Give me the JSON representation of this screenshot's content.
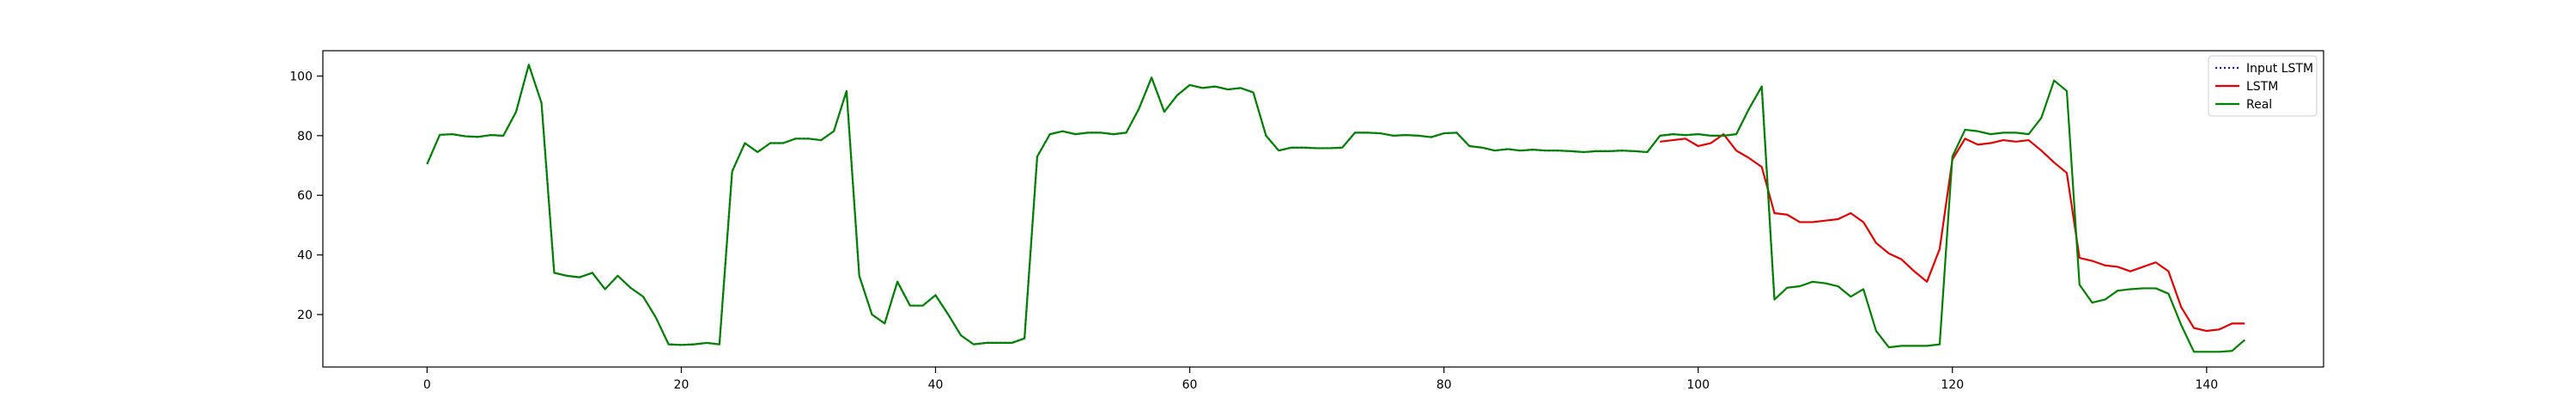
{
  "chart_data": {
    "type": "line",
    "title": "",
    "xlabel": "",
    "ylabel": "",
    "xlim": [
      -8.2,
      149.2
    ],
    "ylim": [
      2.4,
      108.5
    ],
    "xticks": [
      0,
      20,
      40,
      60,
      80,
      100,
      120,
      140
    ],
    "yticks": [
      20,
      40,
      60,
      80,
      100
    ],
    "grid": false,
    "legend": {
      "location": "upper right"
    },
    "series": [
      {
        "name": "Input LSTM",
        "color": "#1f1f8f",
        "linestyle": "dotted",
        "x_start": 0,
        "values": [
          70.5,
          80.3,
          80.5,
          79.8,
          79.6,
          80.2,
          80.0,
          88.0,
          103.8,
          91.0,
          34.0,
          33.0,
          32.5,
          34.0,
          28.5,
          33.0,
          29.0,
          26.0,
          19.0,
          10.0,
          9.8,
          10.0,
          10.5,
          10.0,
          68.0,
          77.5,
          74.5,
          77.5,
          77.5,
          79.0,
          79.0,
          78.5,
          81.5,
          95.0,
          33.0,
          20.0,
          17.0,
          31.0,
          23.0,
          23.0,
          26.5,
          20.0,
          13.0,
          10.0,
          10.5,
          10.5,
          10.5,
          12.0,
          73.0,
          80.5,
          81.5,
          80.5,
          81.0,
          81.0,
          80.5,
          81.0,
          89.0,
          99.5,
          88.0,
          93.5,
          97.0,
          96.0,
          96.5,
          95.5,
          96.0,
          94.5,
          80.0,
          75.0,
          76.0,
          76.0,
          75.8,
          75.8,
          76.0,
          81.0,
          81.0,
          80.8,
          80.0,
          80.2,
          80.0,
          79.5,
          80.8,
          81.0,
          76.5,
          76.0,
          75.0,
          75.5,
          75.0,
          75.3,
          75.0,
          75.0,
          74.8,
          74.5,
          74.8,
          74.8,
          75.0,
          74.8,
          74.5,
          80.0,
          80.5,
          80.2,
          80.5,
          80.0,
          80.0,
          80.5,
          89.0,
          96.5,
          25.0
        ]
      },
      {
        "name": "LSTM",
        "color": "#e00000",
        "linestyle": "solid",
        "x_start": 97,
        "values": [
          78.0,
          78.5,
          79.0,
          76.5,
          77.5,
          80.5,
          75.0,
          72.5,
          69.5,
          54.0,
          53.5,
          51.0,
          51.0,
          51.5,
          52.0,
          54.0,
          51.0,
          44.0,
          40.5,
          38.5,
          34.5,
          31.0,
          42.0,
          72.0,
          79.0,
          77.0,
          77.5,
          78.5,
          78.0,
          78.5,
          75.0,
          71.0,
          67.5,
          39.0,
          38.0,
          36.5,
          36.0,
          34.5,
          36.0,
          37.5,
          34.5,
          22.5,
          15.5,
          14.5,
          15.0,
          17.0,
          17.0
        ]
      },
      {
        "name": "Real",
        "color": "#008000",
        "linestyle": "solid",
        "x_start": 0,
        "values": [
          70.5,
          80.3,
          80.5,
          79.8,
          79.6,
          80.2,
          80.0,
          88.0,
          103.8,
          91.0,
          34.0,
          33.0,
          32.5,
          34.0,
          28.5,
          33.0,
          29.0,
          26.0,
          19.0,
          10.0,
          9.8,
          10.0,
          10.5,
          10.0,
          68.0,
          77.5,
          74.5,
          77.5,
          77.5,
          79.0,
          79.0,
          78.5,
          81.5,
          95.0,
          33.0,
          20.0,
          17.0,
          31.0,
          23.0,
          23.0,
          26.5,
          20.0,
          13.0,
          10.0,
          10.5,
          10.5,
          10.5,
          12.0,
          73.0,
          80.5,
          81.5,
          80.5,
          81.0,
          81.0,
          80.5,
          81.0,
          89.0,
          99.5,
          88.0,
          93.5,
          97.0,
          96.0,
          96.5,
          95.5,
          96.0,
          94.5,
          80.0,
          75.0,
          76.0,
          76.0,
          75.8,
          75.8,
          76.0,
          81.0,
          81.0,
          80.8,
          80.0,
          80.2,
          80.0,
          79.5,
          80.8,
          81.0,
          76.5,
          76.0,
          75.0,
          75.5,
          75.0,
          75.3,
          75.0,
          75.0,
          74.8,
          74.5,
          74.8,
          74.8,
          75.0,
          74.8,
          74.5,
          80.0,
          80.5,
          80.2,
          80.5,
          80.0,
          80.0,
          80.5,
          89.0,
          96.5,
          25.0,
          29.0,
          29.5,
          31.0,
          30.5,
          29.5,
          26.0,
          28.5,
          14.5,
          9.0,
          9.5,
          9.5,
          9.5,
          10.0,
          73.0,
          82.0,
          81.5,
          80.5,
          81.0,
          81.0,
          80.5,
          86.0,
          98.5,
          95.0,
          30.0,
          24.0,
          25.0,
          28.0,
          28.5,
          28.8,
          28.8,
          27.0,
          16.5,
          7.5,
          7.5,
          7.5,
          7.8,
          11.5
        ]
      }
    ]
  }
}
